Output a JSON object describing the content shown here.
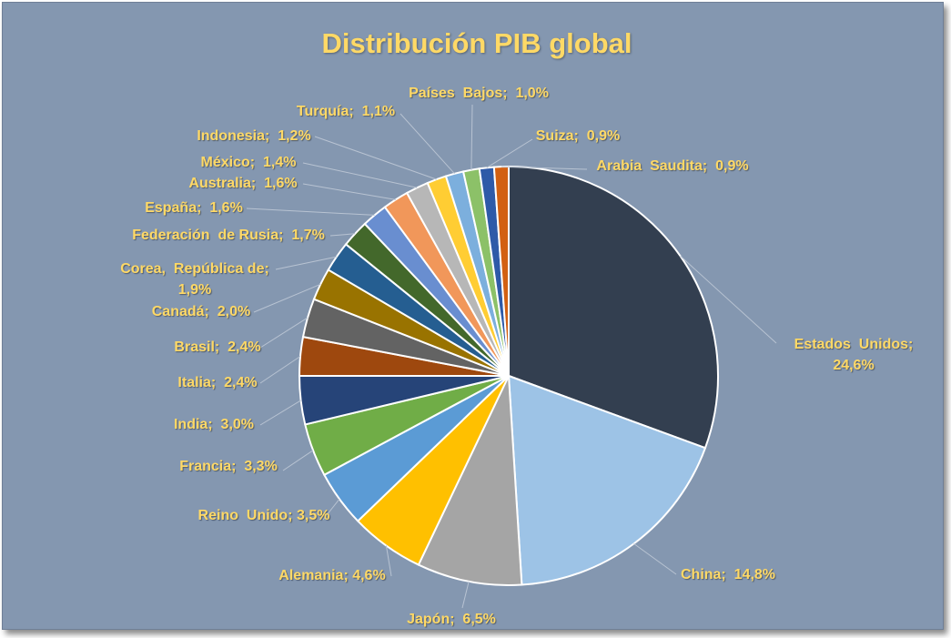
{
  "chart_data": {
    "type": "pie",
    "title": "Distribución PIB global",
    "series": [
      {
        "slices": [
          {
            "label": "Estados  Unidos;",
            "label2": "24,6%",
            "value": 24.6,
            "color": "#333f50"
          },
          {
            "label": "China;  14,8%",
            "value": 14.8,
            "color": "#9dc3e6"
          },
          {
            "label": "Japón;  6,5%",
            "value": 6.5,
            "color": "#a5a5a5"
          },
          {
            "label": "Alemania; 4,6%",
            "value": 4.6,
            "color": "#ffc000"
          },
          {
            "label": "Reino  Unido; 3,5%",
            "value": 3.5,
            "color": "#5b9bd5"
          },
          {
            "label": "Francia;  3,3%",
            "value": 3.3,
            "color": "#70ad47"
          },
          {
            "label": "India;  3,0%",
            "value": 3.0,
            "color": "#264478"
          },
          {
            "label": "Italia;  2,4%",
            "value": 2.4,
            "color": "#9e480e"
          },
          {
            "label": "Brasil;  2,4%",
            "value": 2.4,
            "color": "#636363"
          },
          {
            "label": "Canadá;  2,0%",
            "value": 2.0,
            "color": "#997300"
          },
          {
            "label": "Corea,  República de;",
            "label2": "1,9%",
            "value": 1.9,
            "color": "#255e91"
          },
          {
            "label": "Federación  de Rusia;  1,7%",
            "value": 1.7,
            "color": "#43682b"
          },
          {
            "label": "España;  1,6%",
            "value": 1.6,
            "color": "#698ed0"
          },
          {
            "label": "Australia;  1,6%",
            "value": 1.6,
            "color": "#f1975a"
          },
          {
            "label": "México;  1,4%",
            "value": 1.4,
            "color": "#b7b7b7"
          },
          {
            "label": "Indonesia;  1,2%",
            "value": 1.2,
            "color": "#ffcd33"
          },
          {
            "label": "Turquía;  1,1%",
            "value": 1.1,
            "color": "#7cafdd"
          },
          {
            "label": "Países  Bajos;  1,0%",
            "value": 1.0,
            "color": "#8cc168"
          },
          {
            "label": "Suiza;  0,9%",
            "value": 0.9,
            "color": "#2e5aa8"
          },
          {
            "label": "Arabia  Saudita;  0,9%",
            "value": 0.9,
            "color": "#d26012"
          }
        ]
      }
    ],
    "start_angle": "12 o'clock",
    "direction": "clockwise",
    "legend": "none",
    "data_labels": "outside with leader lines",
    "background_color": "#8497b0",
    "label_color": "#ffd966"
  }
}
